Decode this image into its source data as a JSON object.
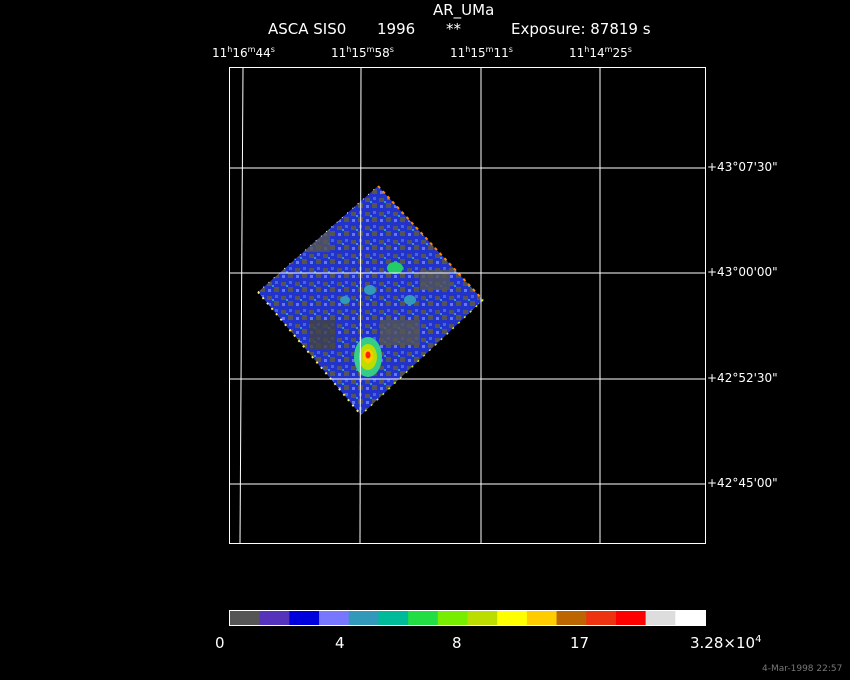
{
  "header": {
    "object": "AR_UMa",
    "instrument": "ASCA SIS0",
    "year": "1996",
    "stars": "**",
    "exposure": "Exposure: 87819 s"
  },
  "ra_labels": [
    {
      "h": "11",
      "m": "16",
      "s": "44"
    },
    {
      "h": "11",
      "m": "15",
      "s": "58"
    },
    {
      "h": "11",
      "m": "15",
      "s": "11"
    },
    {
      "h": "11",
      "m": "14",
      "s": "25"
    }
  ],
  "dec_labels": [
    "+43°07'30\"",
    "+43°00'00\"",
    "+42°52'30\"",
    "+42°45'00\""
  ],
  "colorbar": {
    "colors": [
      "#555555",
      "#5533bb",
      "#0000dd",
      "#7777ff",
      "#3399bb",
      "#00bb99",
      "#22dd44",
      "#77ee00",
      "#bbdd00",
      "#ffff00",
      "#ffcc00",
      "#bb6600",
      "#ee3311",
      "#ff0000",
      "#dddddd",
      "#ffffff"
    ],
    "labels": [
      "0",
      "4",
      "8",
      "17"
    ],
    "max_label": "3.28×10",
    "max_exp": "4"
  },
  "timestamp": "4-Mar-1998 22:57"
}
